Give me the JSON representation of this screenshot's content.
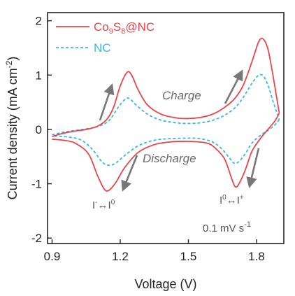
{
  "chart_data": {
    "type": "line",
    "xlabel": "Voltage (V)",
    "ylabel": "Current density (mA cm",
    "ylabel_sup": "-2",
    "ylabel_close": ")",
    "xlim": [
      0.88,
      1.92
    ],
    "ylim": [
      -2.1,
      2.15
    ],
    "x_ticks": [
      0.9,
      1.2,
      1.5,
      1.8
    ],
    "x_tick_labels": [
      "0.9",
      "1.2",
      "1.5",
      "1.8"
    ],
    "y_ticks": [
      2,
      1,
      0,
      -1,
      -2
    ],
    "y_tick_labels": [
      "2",
      "1",
      "0",
      "-1",
      "-2"
    ],
    "legend_position": "top-left",
    "series": [
      {
        "name": "Co9S8@NC",
        "name_parts": [
          [
            "Co",
            ""
          ],
          [
            "9",
            "sub"
          ],
          [
            "S",
            ""
          ],
          [
            "8",
            "sub"
          ],
          [
            "@NC",
            ""
          ]
        ],
        "color": "#e8454a",
        "dash": "solid",
        "charge": [
          [
            0.9,
            -0.13
          ],
          [
            0.95,
            -0.07
          ],
          [
            1.0,
            -0.03
          ],
          [
            1.05,
            0.0
          ],
          [
            1.1,
            0.06
          ],
          [
            1.14,
            0.18
          ],
          [
            1.17,
            0.4
          ],
          [
            1.2,
            0.8
          ],
          [
            1.23,
            1.05
          ],
          [
            1.25,
            1.0
          ],
          [
            1.28,
            0.72
          ],
          [
            1.32,
            0.45
          ],
          [
            1.38,
            0.28
          ],
          [
            1.45,
            0.21
          ],
          [
            1.5,
            0.2
          ],
          [
            1.55,
            0.22
          ],
          [
            1.6,
            0.27
          ],
          [
            1.65,
            0.38
          ],
          [
            1.7,
            0.55
          ],
          [
            1.74,
            0.8
          ],
          [
            1.78,
            1.25
          ],
          [
            1.81,
            1.62
          ],
          [
            1.83,
            1.66
          ],
          [
            1.85,
            1.48
          ],
          [
            1.87,
            1.05
          ],
          [
            1.89,
            0.55
          ],
          [
            1.9,
            0.3
          ]
        ],
        "discharge": [
          [
            1.9,
            0.3
          ],
          [
            1.88,
            0.15
          ],
          [
            1.85,
            0.0
          ],
          [
            1.82,
            -0.15
          ],
          [
            1.78,
            -0.4
          ],
          [
            1.75,
            -0.75
          ],
          [
            1.72,
            -1.02
          ],
          [
            1.705,
            -1.05
          ],
          [
            1.69,
            -0.9
          ],
          [
            1.66,
            -0.55
          ],
          [
            1.62,
            -0.35
          ],
          [
            1.58,
            -0.25
          ],
          [
            1.5,
            -0.22
          ],
          [
            1.42,
            -0.23
          ],
          [
            1.35,
            -0.28
          ],
          [
            1.28,
            -0.42
          ],
          [
            1.22,
            -0.7
          ],
          [
            1.18,
            -0.98
          ],
          [
            1.15,
            -1.12
          ],
          [
            1.13,
            -1.1
          ],
          [
            1.1,
            -0.85
          ],
          [
            1.06,
            -0.45
          ],
          [
            1.0,
            -0.25
          ],
          [
            0.95,
            -0.2
          ],
          [
            0.9,
            -0.18
          ]
        ]
      },
      {
        "name": "NC",
        "name_parts": [
          [
            "NC",
            ""
          ]
        ],
        "color": "#3ab5e6",
        "dash": "4,3",
        "charge": [
          [
            0.9,
            -0.1
          ],
          [
            0.95,
            -0.05
          ],
          [
            1.0,
            -0.02
          ],
          [
            1.05,
            0.01
          ],
          [
            1.1,
            0.05
          ],
          [
            1.15,
            0.16
          ],
          [
            1.19,
            0.4
          ],
          [
            1.22,
            0.55
          ],
          [
            1.24,
            0.57
          ],
          [
            1.27,
            0.45
          ],
          [
            1.32,
            0.28
          ],
          [
            1.38,
            0.17
          ],
          [
            1.45,
            0.12
          ],
          [
            1.5,
            0.11
          ],
          [
            1.55,
            0.12
          ],
          [
            1.6,
            0.16
          ],
          [
            1.65,
            0.24
          ],
          [
            1.7,
            0.38
          ],
          [
            1.74,
            0.58
          ],
          [
            1.78,
            0.85
          ],
          [
            1.81,
            1.0
          ],
          [
            1.83,
            0.98
          ],
          [
            1.85,
            0.82
          ],
          [
            1.87,
            0.55
          ],
          [
            1.89,
            0.3
          ],
          [
            1.9,
            0.18
          ]
        ],
        "discharge": [
          [
            1.9,
            0.18
          ],
          [
            1.88,
            0.08
          ],
          [
            1.85,
            -0.02
          ],
          [
            1.82,
            -0.1
          ],
          [
            1.78,
            -0.25
          ],
          [
            1.75,
            -0.45
          ],
          [
            1.72,
            -0.6
          ],
          [
            1.7,
            -0.62
          ],
          [
            1.68,
            -0.52
          ],
          [
            1.64,
            -0.33
          ],
          [
            1.6,
            -0.22
          ],
          [
            1.55,
            -0.17
          ],
          [
            1.5,
            -0.16
          ],
          [
            1.42,
            -0.17
          ],
          [
            1.35,
            -0.2
          ],
          [
            1.28,
            -0.3
          ],
          [
            1.22,
            -0.48
          ],
          [
            1.18,
            -0.62
          ],
          [
            1.15,
            -0.66
          ],
          [
            1.12,
            -0.6
          ],
          [
            1.08,
            -0.38
          ],
          [
            1.03,
            -0.2
          ],
          [
            0.97,
            -0.14
          ],
          [
            0.9,
            -0.12
          ]
        ]
      }
    ],
    "annotations": {
      "charge": "Charge",
      "discharge": "Discharge",
      "redox_left": "I",
      "redox_left_sup1": "-",
      "redox_left_arrow": "↔",
      "redox_left_tail": "I",
      "redox_left_sup2": "0",
      "redox_right": "I",
      "redox_right_sup1": "0",
      "redox_right_arrow": "↔",
      "redox_right_tail": "I",
      "redox_right_sup2": "+",
      "scan_rate": "0.1 mV s",
      "scan_rate_sup": "-1"
    },
    "arrow_color": "#777777"
  }
}
